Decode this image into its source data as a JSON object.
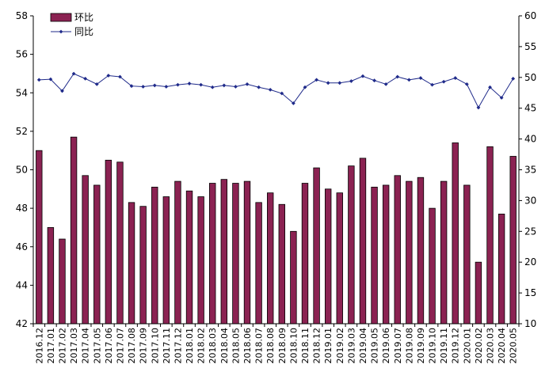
{
  "chart_data": {
    "type": "bar+line",
    "categories": [
      "2016.12",
      "2017.01",
      "2017.02",
      "2017.03",
      "2017.04",
      "2017.05",
      "2017.06",
      "2017.07",
      "2017.08",
      "2017.09",
      "2017.10",
      "2017.11",
      "2017.12",
      "2018.01",
      "2018.02",
      "2018.03",
      "2018.04",
      "2018.05",
      "2018.06",
      "2018.07",
      "2018.08",
      "2018.09",
      "2018.10",
      "2018.11",
      "2018.12",
      "2019.01",
      "2019.02",
      "2019.03",
      "2019.04",
      "2019.05",
      "2019.06",
      "2019.07",
      "2019.08",
      "2019.09",
      "2019.10",
      "2019.11",
      "2019.12",
      "2020.01",
      "2020.02",
      "2020.03",
      "2020.04",
      "2020.05"
    ],
    "series": [
      {
        "name": "环比",
        "type": "bar",
        "axis": "left",
        "color": "#8b2252",
        "values": [
          51.0,
          47.0,
          46.4,
          51.7,
          49.7,
          49.2,
          50.5,
          50.4,
          48.3,
          48.1,
          49.1,
          48.6,
          49.4,
          48.9,
          48.6,
          49.3,
          49.5,
          49.3,
          49.4,
          48.3,
          48.8,
          48.2,
          46.8,
          49.3,
          50.1,
          49.0,
          48.8,
          50.2,
          50.6,
          49.1,
          49.2,
          49.7,
          49.4,
          49.6,
          48.0,
          49.4,
          51.4,
          49.2,
          45.2,
          51.2,
          47.7,
          50.7
        ]
      },
      {
        "name": "同比",
        "type": "line",
        "axis": "right",
        "color": "#1f2a8a",
        "values": [
          49.6,
          49.7,
          47.8,
          50.6,
          49.8,
          48.9,
          50.3,
          50.1,
          48.6,
          48.5,
          48.7,
          48.5,
          48.8,
          49.0,
          48.8,
          48.4,
          48.7,
          48.5,
          48.9,
          48.4,
          48.0,
          47.4,
          45.8,
          48.4,
          49.6,
          49.1,
          49.1,
          49.4,
          50.2,
          49.5,
          48.9,
          50.1,
          49.6,
          49.9,
          48.8,
          49.3,
          49.9,
          48.9,
          45.1,
          48.4,
          46.7,
          49.8
        ]
      }
    ],
    "y_left": {
      "min": 42,
      "max": 58,
      "ticks": [
        42,
        44,
        46,
        48,
        50,
        52,
        54,
        56,
        58
      ]
    },
    "y_right": {
      "min": 10,
      "max": 60,
      "ticks": [
        10,
        15,
        20,
        25,
        30,
        35,
        40,
        45,
        50,
        55,
        60
      ]
    },
    "legend_position": "top-left",
    "grid": false
  }
}
